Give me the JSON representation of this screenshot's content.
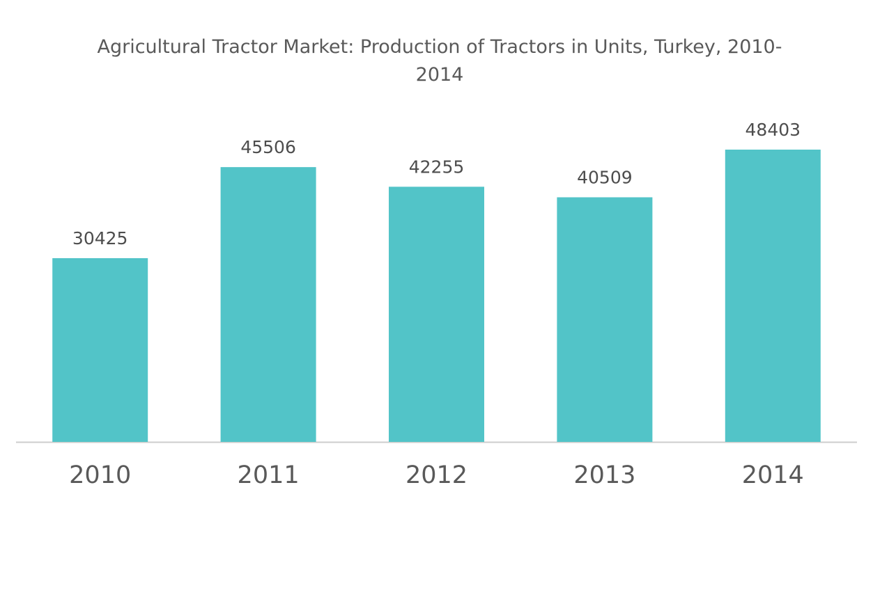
{
  "chart_data": {
    "type": "bar",
    "title": "Agricultural Tractor Market: Production of Tractors in Units, Turkey, 2010-2014",
    "categories": [
      "2010",
      "2011",
      "2012",
      "2013",
      "2014"
    ],
    "values": [
      30425,
      45506,
      42255,
      40509,
      48403
    ],
    "color": "#52c4c8"
  }
}
